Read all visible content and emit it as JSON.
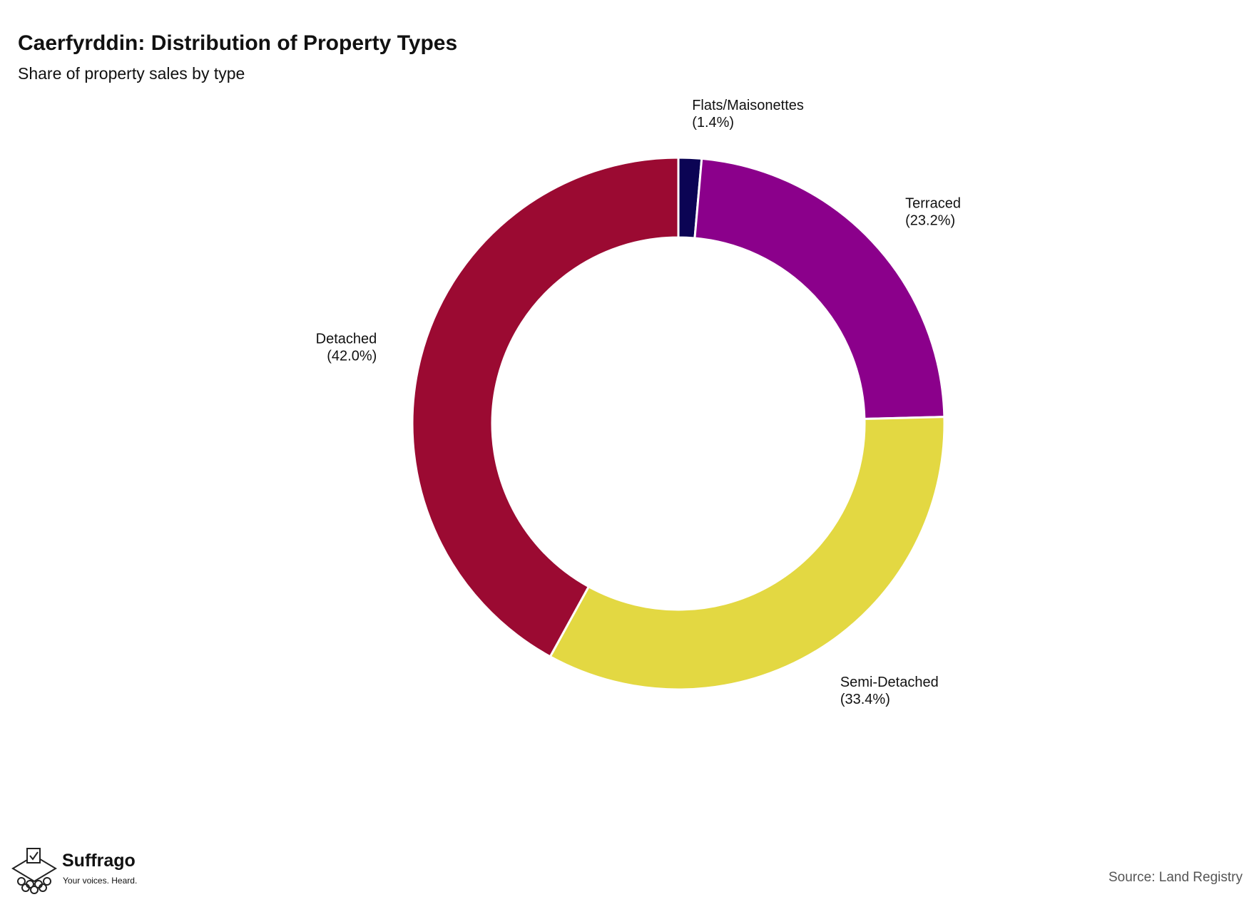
{
  "chart_data": {
    "type": "donut",
    "title": "Caerfyrddin: Distribution of Property Types",
    "subtitle": "Share of property sales by type",
    "categories": [
      "Flats/Maisonettes",
      "Terraced",
      "Semi-Detached",
      "Detached"
    ],
    "values": [
      1.4,
      23.2,
      33.4,
      42.0
    ],
    "value_labels": [
      "(1.4%)",
      "(23.2%)",
      "(33.4%)",
      "(42.0%)"
    ],
    "colors": [
      "#0b0454",
      "#8b008b",
      "#e3d842",
      "#9b0a32"
    ],
    "source": "Source: Land Registry"
  },
  "branding": {
    "name": "Suffrago",
    "tagline": "Your voices. Heard."
  }
}
